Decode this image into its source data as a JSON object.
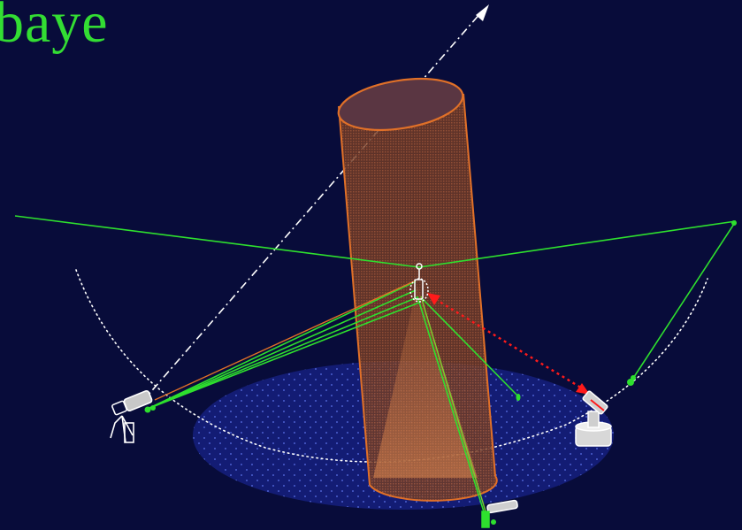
{
  "title": "baye",
  "colors": {
    "background": "#080c3a",
    "title": "#33dd33",
    "beam": "#e07028",
    "beam_fill": "#b0582a",
    "laser_line": "#2ee02e",
    "arrow_red": "#ff1a1a",
    "axis_dashed": "#ffffff",
    "ground_dots": "#3a4cc8",
    "ground_fill": "#1a2690",
    "arc_dots": "#ffffff"
  },
  "icons": {
    "left_camera": "camera-on-tripod-icon",
    "right_instrument": "scanner-station-icon",
    "bottom_camera": "handheld-camera-icon",
    "center_target": "target-marker-icon"
  }
}
